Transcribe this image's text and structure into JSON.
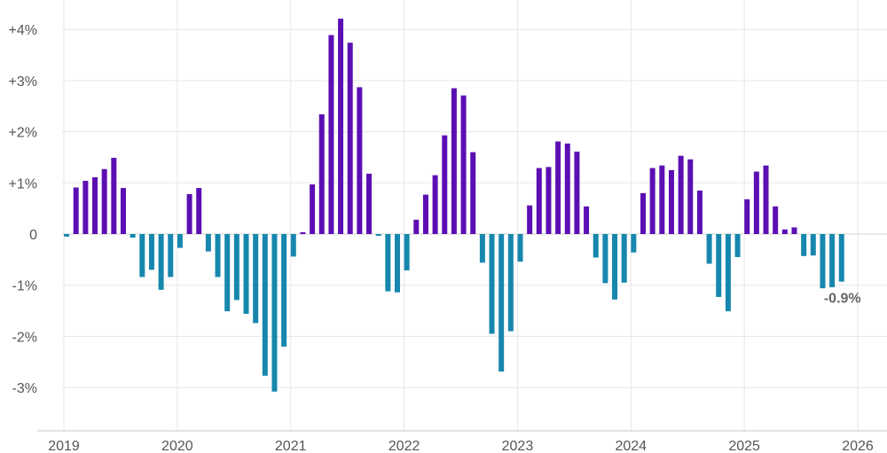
{
  "colors": {
    "positive": "#5b0fb3",
    "negative": "#1787ad",
    "grid": "#e6e6e6",
    "axis": "#c8c8c8",
    "text": "#555555",
    "annotation": "#666666"
  },
  "chart_data": {
    "type": "bar",
    "title": "",
    "xlabel": "",
    "ylabel": "",
    "ylim": [
      -3.8,
      4.4
    ],
    "xlim": [
      2019,
      2026
    ],
    "y_ticks": [
      {
        "value": 4,
        "label": "+4%"
      },
      {
        "value": 3,
        "label": "+3%"
      },
      {
        "value": 2,
        "label": "+2%"
      },
      {
        "value": 1,
        "label": "+1%"
      },
      {
        "value": 0,
        "label": "0"
      },
      {
        "value": -1,
        "label": "-1%"
      },
      {
        "value": -2,
        "label": "-2%"
      },
      {
        "value": -3,
        "label": "-3%"
      }
    ],
    "x_ticks": [
      "2019",
      "2020",
      "2021",
      "2022",
      "2023",
      "2024",
      "2025",
      "2026"
    ],
    "start_year": 2019,
    "periods_per_year": 12,
    "values": [
      -0.05,
      0.91,
      1.04,
      1.11,
      1.27,
      1.49,
      0.9,
      -0.07,
      -0.84,
      -0.7,
      -1.09,
      -0.84,
      -0.27,
      0.78,
      0.9,
      -0.34,
      -0.84,
      -1.51,
      -1.29,
      -1.56,
      -1.74,
      -2.77,
      -3.08,
      -2.2,
      -0.44,
      0.02,
      0.97,
      2.34,
      3.89,
      4.21,
      3.74,
      2.87,
      1.18,
      -0.02,
      -1.12,
      -1.14,
      -0.71,
      0.28,
      0.77,
      1.15,
      1.93,
      2.85,
      2.71,
      1.6,
      -0.56,
      -1.95,
      -2.69,
      -1.9,
      -0.54,
      0.56,
      1.29,
      1.31,
      1.81,
      1.77,
      1.61,
      0.54,
      -0.46,
      -0.96,
      -1.28,
      -0.95,
      -0.36,
      0.8,
      1.29,
      1.34,
      1.25,
      1.53,
      1.46,
      0.85,
      -0.58,
      -1.23,
      -1.51,
      -0.45,
      0.68,
      1.22,
      1.34,
      0.54,
      0.09,
      0.13,
      -0.43,
      -0.42,
      -1.06,
      -1.04,
      -0.93
    ],
    "last_value_label": "-0.9%"
  }
}
